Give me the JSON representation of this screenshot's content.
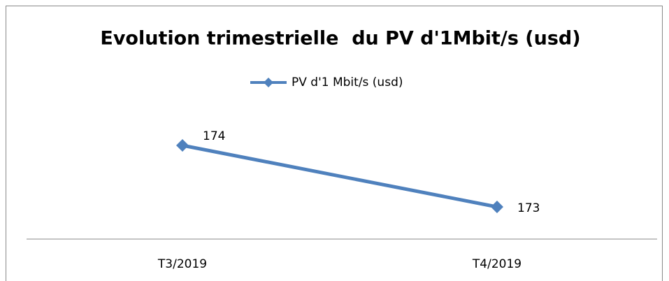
{
  "chart_data": {
    "type": "line",
    "title": "Evolution trimestrielle  du PV d'1Mbit/s (usd)",
    "categories": [
      "T3/2019",
      "T4/2019"
    ],
    "series": [
      {
        "name": "PV d'1 Mbit/s (usd)",
        "color": "#4f81bd",
        "values": [
          174,
          173
        ]
      }
    ]
  }
}
